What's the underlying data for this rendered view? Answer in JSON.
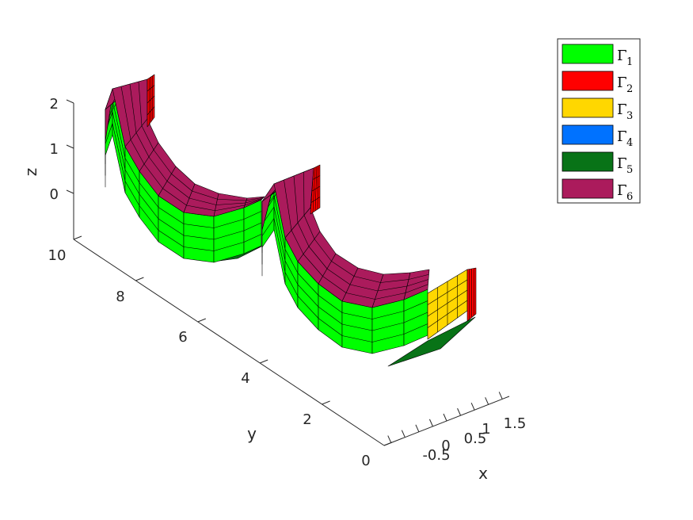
{
  "chart_data": {
    "type": "surface3d",
    "description_shape": "Two U-shaped curved ducts with rectangular cross-section, boundary faces colored by boundary id",
    "axes": {
      "x": {
        "label": "x",
        "ticks": [
          "-0.5",
          "0",
          "0.5",
          "1",
          "1.5"
        ]
      },
      "y": {
        "label": "y",
        "ticks": [
          "0",
          "2",
          "4",
          "6",
          "8",
          "10"
        ]
      },
      "z": {
        "label": "z",
        "ticks": [
          "0",
          "1",
          "2"
        ]
      }
    },
    "legend": {
      "placement": "top-right",
      "entries": [
        {
          "symbol": "Γ",
          "sub": "1",
          "color": "#00ff00"
        },
        {
          "symbol": "Γ",
          "sub": "2",
          "color": "#ff0000"
        },
        {
          "symbol": "Γ",
          "sub": "3",
          "color": "#ffd700"
        },
        {
          "symbol": "Γ",
          "sub": "4",
          "color": "#0072ff"
        },
        {
          "symbol": "Γ",
          "sub": "5",
          "color": "#087317"
        },
        {
          "symbol": "Γ",
          "sub": "6",
          "color": "#ab1b5c"
        }
      ]
    }
  }
}
